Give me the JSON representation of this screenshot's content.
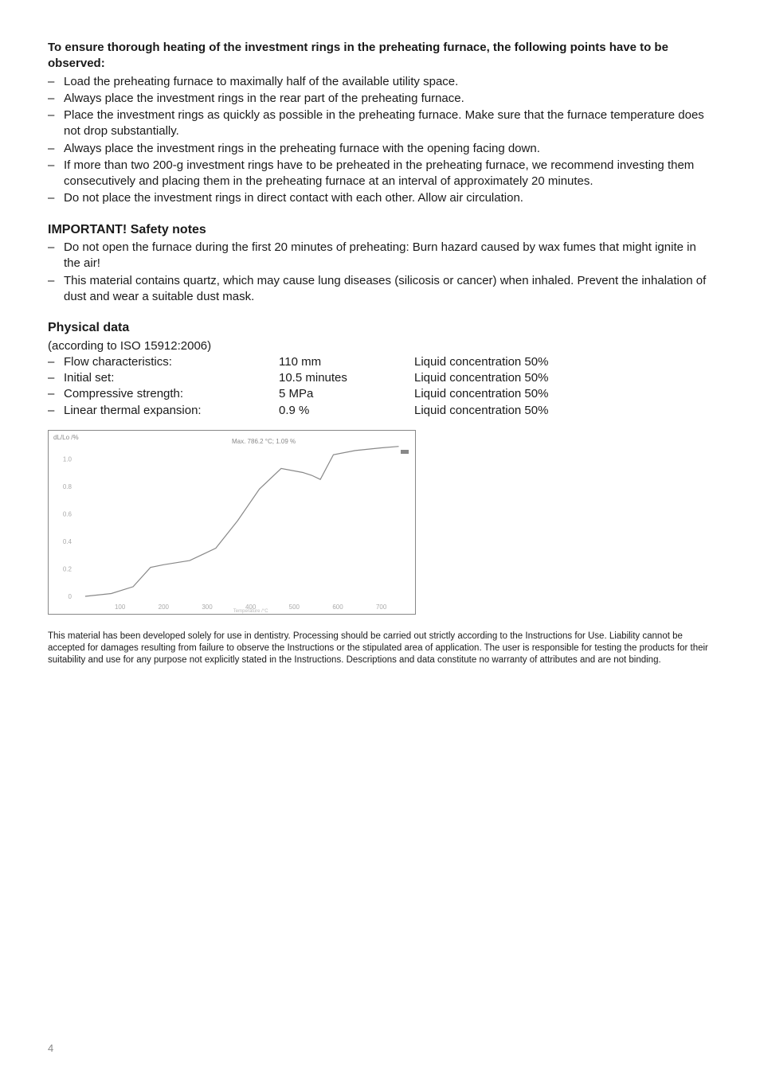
{
  "heading1": "To ensure thorough heating of the investment rings in the preheating furnace, the following points have to be observed:",
  "points1": [
    "Load the preheating furnace to maximally half of the available utility space.",
    "Always place the investment rings in the rear part of the preheating furnace.",
    "Place the investment rings as quickly as possible in the preheating furnace. Make sure that the furnace temperature does not drop substantially.",
    "Always place the investment rings in the preheating furnace with the opening facing down.",
    "If more than two 200-g investment rings have to be preheated in the preheating furnace, we recommend investing them consecutively and placing them in the preheating furnace at an interval of approximately 20 minutes.",
    "Do not place the investment rings in direct contact with each other. Allow air circulation."
  ],
  "heading2": "IMPORTANT! Safety notes",
  "points2": [
    "Do not open the furnace during the first 20 minutes of preheating: Burn hazard caused by wax fumes that might ignite in the air!",
    "This material contains quartz, which may cause lung diseases (silicosis or cancer) when inhaled. Prevent the inhalation of dust and wear a suitable dust mask."
  ],
  "heading3": "Physical data",
  "phys_sub": "(according to ISO 15912:2006)",
  "phys_rows": [
    {
      "label": "Flow characteristics:",
      "value": "110 mm",
      "cond": "Liquid concentration 50%"
    },
    {
      "label": "Initial set:",
      "value": "10.5 minutes",
      "cond": "Liquid concentration 50%"
    },
    {
      "label": "Compressive strength:",
      "value": "5 MPa",
      "cond": "Liquid concentration 50%"
    },
    {
      "label": "Linear thermal expansion:",
      "value": "0.9 %",
      "cond": "Liquid concentration 50%"
    }
  ],
  "chart": {
    "type": "line",
    "title_text": "Max. 786.2 °C; 1.09 %",
    "title_fontsize": 8,
    "title_color": "#888888",
    "y_axis_label": "dL/Lo /%",
    "y_ticks": [
      "1.0",
      "",
      "0.8",
      "0.6",
      "0.4",
      "0.2",
      "0"
    ],
    "x_ticks": [
      "100",
      "200",
      "300",
      "400",
      "500",
      "600",
      "700"
    ],
    "x_axis_label_small": "Temperature /°C",
    "xlim": [
      0,
      750
    ],
    "ylim": [
      0,
      1.1
    ],
    "line_color": "#888888",
    "line_width": 1.2,
    "background_color": "#ffffff",
    "border_color": "#888888",
    "points": [
      [
        20,
        0.0
      ],
      [
        80,
        0.02
      ],
      [
        130,
        0.07
      ],
      [
        170,
        0.21
      ],
      [
        200,
        0.23
      ],
      [
        260,
        0.26
      ],
      [
        320,
        0.35
      ],
      [
        370,
        0.55
      ],
      [
        420,
        0.78
      ],
      [
        470,
        0.93
      ],
      [
        520,
        0.9
      ],
      [
        540,
        0.88
      ],
      [
        560,
        0.85
      ],
      [
        590,
        1.03
      ],
      [
        640,
        1.06
      ],
      [
        700,
        1.08
      ],
      [
        740,
        1.09
      ]
    ]
  },
  "disclaimer": "This material has been developed solely for use in dentistry. Processing should be carried out strictly according to the Instructions for Use. Liability cannot be accepted for damages resulting from failure to observe the Instructions or the stipulated area of application. The user is responsible for testing the products for their suitability and use for any purpose not explicitly stated in the Instructions. Descriptions and data constitute no warranty of attributes and are not binding.",
  "page_number": "4"
}
